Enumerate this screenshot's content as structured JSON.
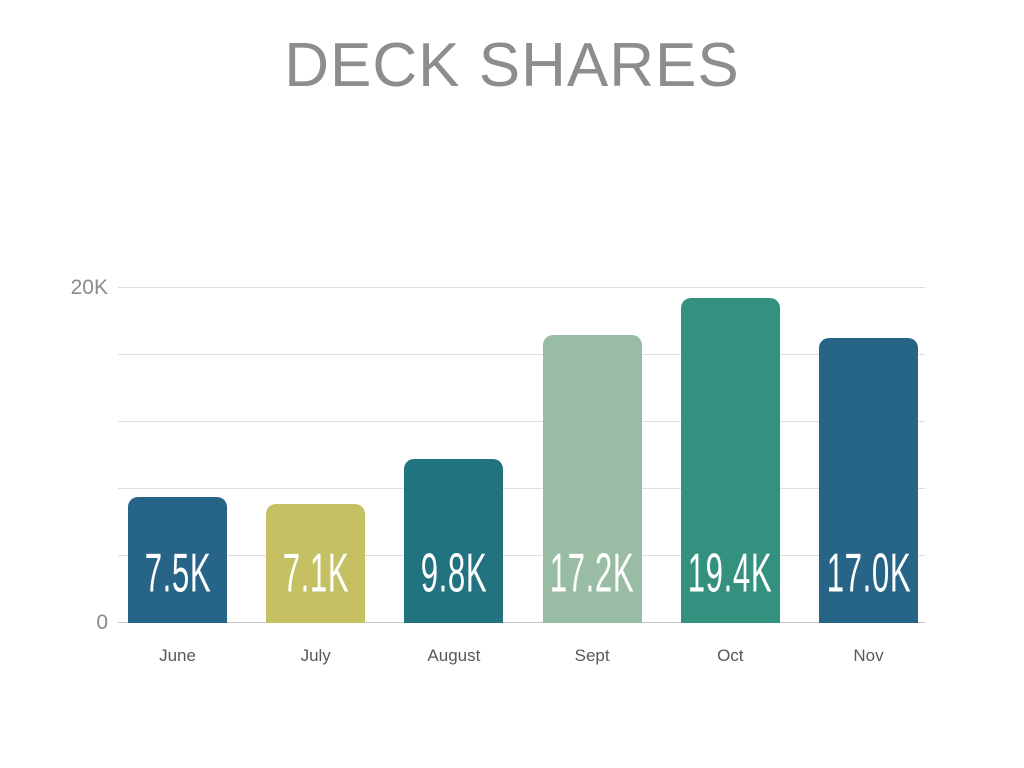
{
  "title": "DECK SHARES",
  "chart_data": {
    "type": "bar",
    "title": "DECK SHARES",
    "categories": [
      "June",
      "July",
      "August",
      "Sept",
      "Oct",
      "Nov"
    ],
    "values": [
      7500,
      7100,
      9800,
      17200,
      19400,
      17000
    ],
    "value_labels": [
      "7.5K",
      "7.1K",
      "9.8K",
      "17.2K",
      "19.4K",
      "17.0K"
    ],
    "bar_colors": [
      "#266488",
      "#c5c162",
      "#21747f",
      "#98bda4",
      "#35917f",
      "#266488"
    ],
    "xlabel": "",
    "ylabel": "",
    "ylim": [
      0,
      20000
    ],
    "gridline_step": 4000,
    "grid": "on",
    "legend": "none",
    "yticks": [
      {
        "value": 0,
        "label": "0"
      },
      {
        "value": 20000,
        "label": "20K"
      }
    ],
    "colors": {
      "title_text": "#8d8d8d",
      "axis_labels": "#8a8a8a",
      "category_labels": "#585858",
      "bar_value_text": "#ffffff",
      "gridline": "#dedede",
      "baseline": "#c7c7c7",
      "background": "#ffffff"
    }
  }
}
